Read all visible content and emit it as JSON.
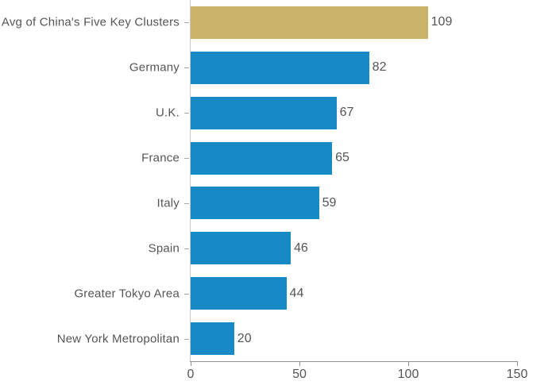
{
  "chart_data": {
    "type": "bar",
    "orientation": "horizontal",
    "title": "",
    "xlabel": "",
    "ylabel": "",
    "categories": [
      "Avg of China's Five Key Clusters",
      "Germany",
      "U.K.",
      "France",
      "Italy",
      "Spain",
      "Greater Tokyo Area",
      "New York Metropolitan"
    ],
    "values": [
      109,
      82,
      67,
      65,
      59,
      46,
      44,
      20
    ],
    "value_labels_shown": true,
    "highlight_index": 0,
    "xlim": [
      0,
      150
    ],
    "x_ticks": [
      "0",
      "50",
      "100",
      "150"
    ],
    "x_tick_values": [
      0,
      50,
      100,
      150
    ],
    "grid": false,
    "legend": "none",
    "colors": {
      "bar_highlight": "#CBB269",
      "bar_default": "#1789C4",
      "text": "#555555",
      "axis_line": "#919191",
      "baseline": "#C8C8C8"
    }
  }
}
